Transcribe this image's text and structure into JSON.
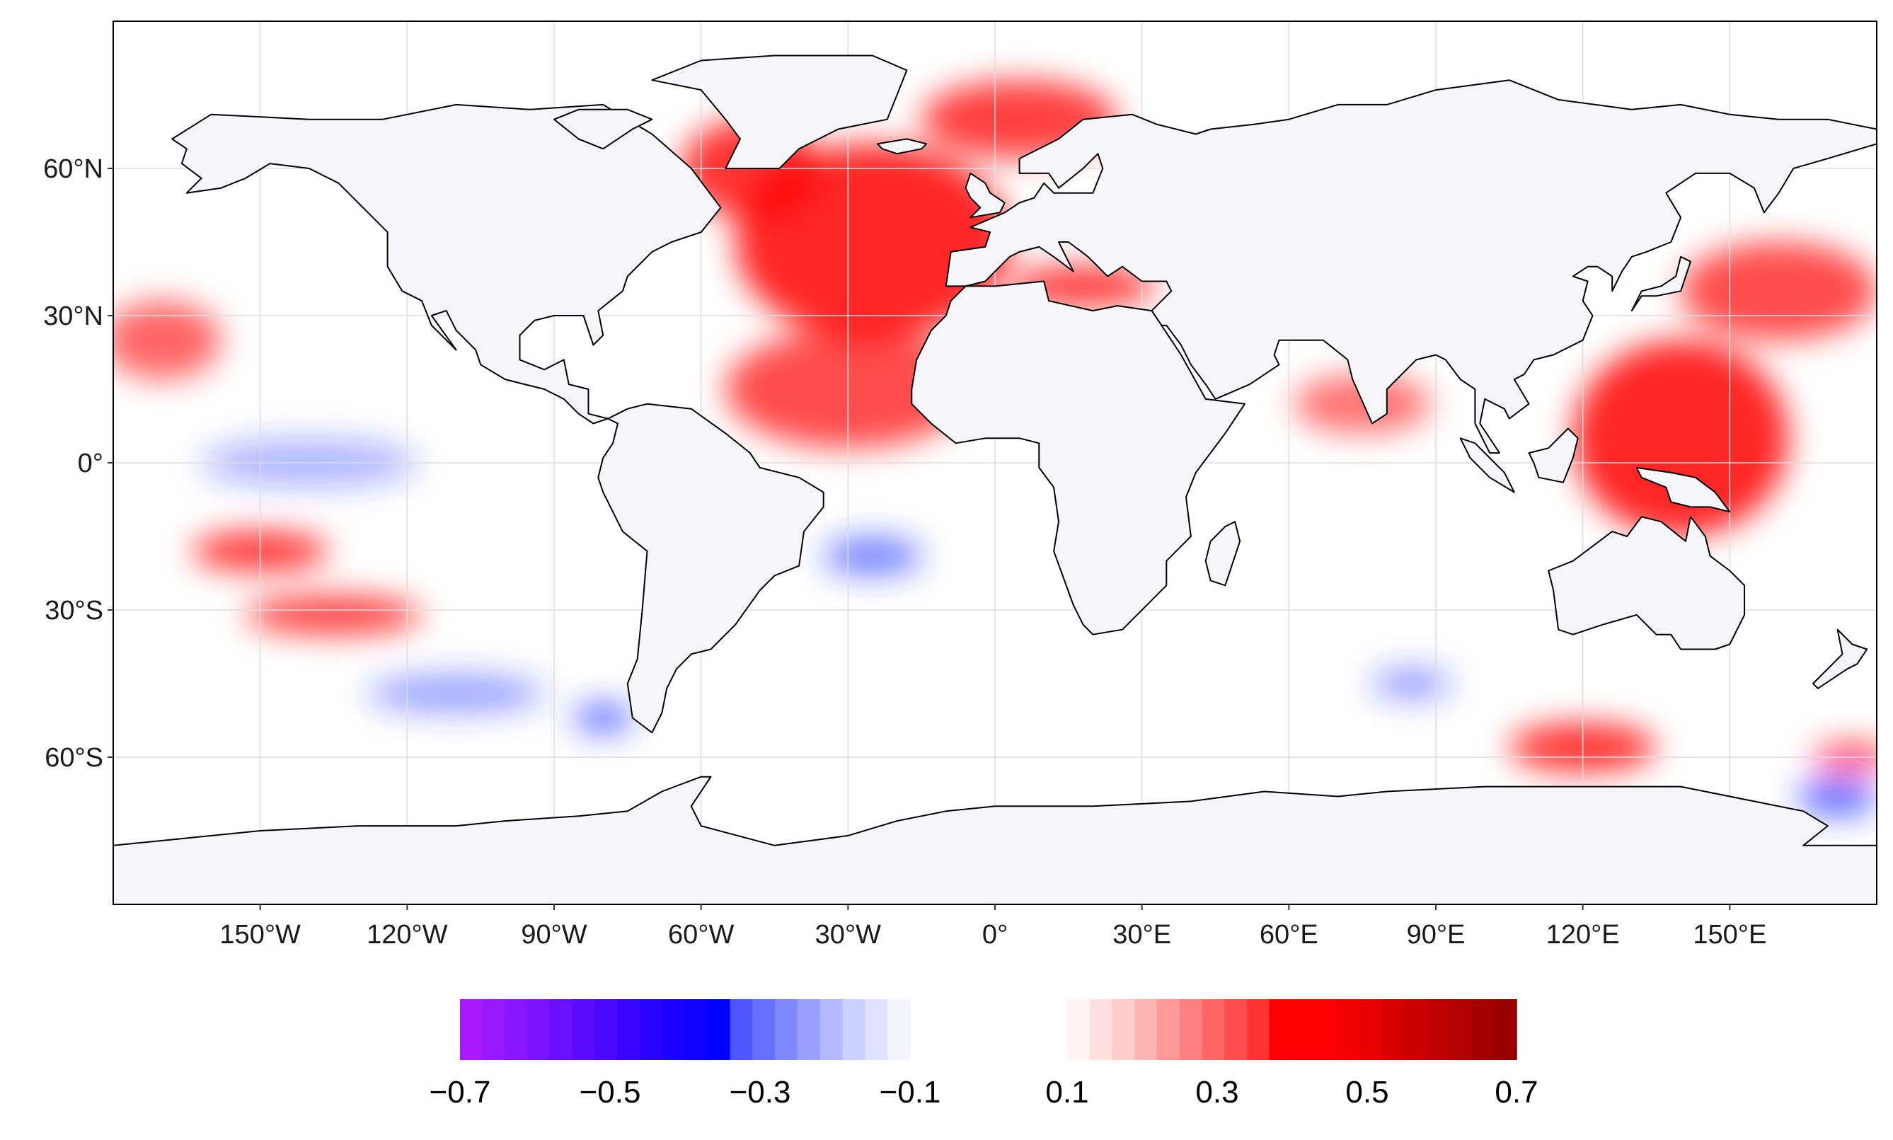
{
  "map": {
    "projection": "equirectangular",
    "lon_range": [
      -180,
      180
    ],
    "lat_range": [
      -90,
      90
    ],
    "lat_labels": [
      "60°N",
      "30°N",
      "0°",
      "30°S",
      "60°S"
    ],
    "lat_values": [
      60,
      30,
      0,
      -30,
      -60
    ],
    "lon_labels": [
      "150°W",
      "120°W",
      "90°W",
      "60°W",
      "30°W",
      "0°",
      "30°E",
      "60°E",
      "90°E",
      "120°E",
      "150°E"
    ],
    "lon_values": [
      -150,
      -120,
      -90,
      -60,
      -30,
      0,
      30,
      60,
      90,
      120,
      150
    ],
    "land_color": "#f6f5fa",
    "ocean_color": "#ffffff",
    "border_color": "#000000",
    "grid_color": "#dddddd"
  },
  "colorbar": {
    "tick_labels": [
      "−0.7",
      "−0.5",
      "−0.3",
      "−0.1",
      "0.1",
      "0.3",
      "0.5",
      "0.7"
    ],
    "negative_segment_colors": [
      "#a91aff",
      "#9a18ff",
      "#8a15ff",
      "#7a12ff",
      "#6a0eff",
      "#5a0bff",
      "#4a08ff",
      "#3a05ff",
      "#2a02ff",
      "#1a00ff",
      "#0d00ff",
      "#0000ff",
      "#4d55ff",
      "#6670ff",
      "#8088ff",
      "#99a0ff",
      "#b3b8ff",
      "#ccd0ff",
      "#e0e2ff",
      "#f3f4ff"
    ],
    "positive_segment_colors": [
      "#fff3f3",
      "#ffe0e0",
      "#ffcccc",
      "#ffb3b3",
      "#ff9999",
      "#ff8080",
      "#ff6666",
      "#ff4d4d",
      "#ff3333",
      "#ff0000",
      "#ff0000",
      "#ff0000",
      "#f20000",
      "#e60000",
      "#d90000",
      "#cc0000",
      "#bf0000",
      "#b30000",
      "#a60000",
      "#990000"
    ]
  },
  "anomalies": {
    "positive_color": "#ff0000",
    "negative_color": "#2233ff",
    "positive_regions": [
      {
        "label": "north-atlantic",
        "lon": -25,
        "lat": 45,
        "rx": 28,
        "ry": 20,
        "alpha": 0.85
      },
      {
        "label": "labrador-sea",
        "lon": -50,
        "lat": 60,
        "rx": 14,
        "ry": 10,
        "alpha": 0.8
      },
      {
        "label": "barents-norwegian",
        "lon": 5,
        "lat": 70,
        "rx": 20,
        "ry": 8,
        "alpha": 0.75
      },
      {
        "label": "subtropical-atlantic",
        "lon": -30,
        "lat": 15,
        "rx": 25,
        "ry": 12,
        "alpha": 0.7
      },
      {
        "label": "mediterranean",
        "lon": 18,
        "lat": 36,
        "rx": 15,
        "ry": 4,
        "alpha": 0.8
      },
      {
        "label": "west-pacific-warm-pool",
        "lon": 140,
        "lat": 5,
        "rx": 22,
        "ry": 20,
        "alpha": 0.85
      },
      {
        "label": "kuroshio",
        "lon": 160,
        "lat": 35,
        "rx": 20,
        "ry": 10,
        "alpha": 0.7
      },
      {
        "label": "indian-ocean-north",
        "lon": 75,
        "lat": 12,
        "rx": 14,
        "ry": 6,
        "alpha": 0.55
      },
      {
        "label": "southern-ocean-indian",
        "lon": 120,
        "lat": -58,
        "rx": 15,
        "ry": 5,
        "alpha": 0.8
      },
      {
        "label": "south-pacific-band",
        "lon": -150,
        "lat": -18,
        "rx": 14,
        "ry": 4,
        "alpha": 0.8
      },
      {
        "label": "south-pacific-band-2",
        "lon": -135,
        "lat": -31,
        "rx": 18,
        "ry": 4,
        "alpha": 0.75
      },
      {
        "label": "north-pacific-east",
        "lon": -170,
        "lat": 25,
        "rx": 12,
        "ry": 8,
        "alpha": 0.6
      },
      {
        "label": "southern-ocean-pacific",
        "lon": 175,
        "lat": -60,
        "rx": 8,
        "ry": 3,
        "alpha": 0.7
      }
    ],
    "negative_regions": [
      {
        "label": "equatorial-pacific",
        "lon": -140,
        "lat": 0,
        "rx": 22,
        "ry": 5,
        "alpha": 0.35
      },
      {
        "label": "south-atlantic",
        "lon": -25,
        "lat": -19,
        "rx": 10,
        "ry": 4,
        "alpha": 0.6
      },
      {
        "label": "southeast-pacific",
        "lon": -80,
        "lat": -52,
        "rx": 6,
        "ry": 3,
        "alpha": 0.7
      },
      {
        "label": "south-pacific-mid",
        "lon": -110,
        "lat": -47,
        "rx": 18,
        "ry": 4,
        "alpha": 0.45
      },
      {
        "label": "south-indian",
        "lon": 85,
        "lat": -45,
        "rx": 8,
        "ry": 3,
        "alpha": 0.5
      },
      {
        "label": "ross-sea",
        "lon": 172,
        "lat": -68,
        "rx": 8,
        "ry": 4,
        "alpha": 0.7
      }
    ]
  }
}
